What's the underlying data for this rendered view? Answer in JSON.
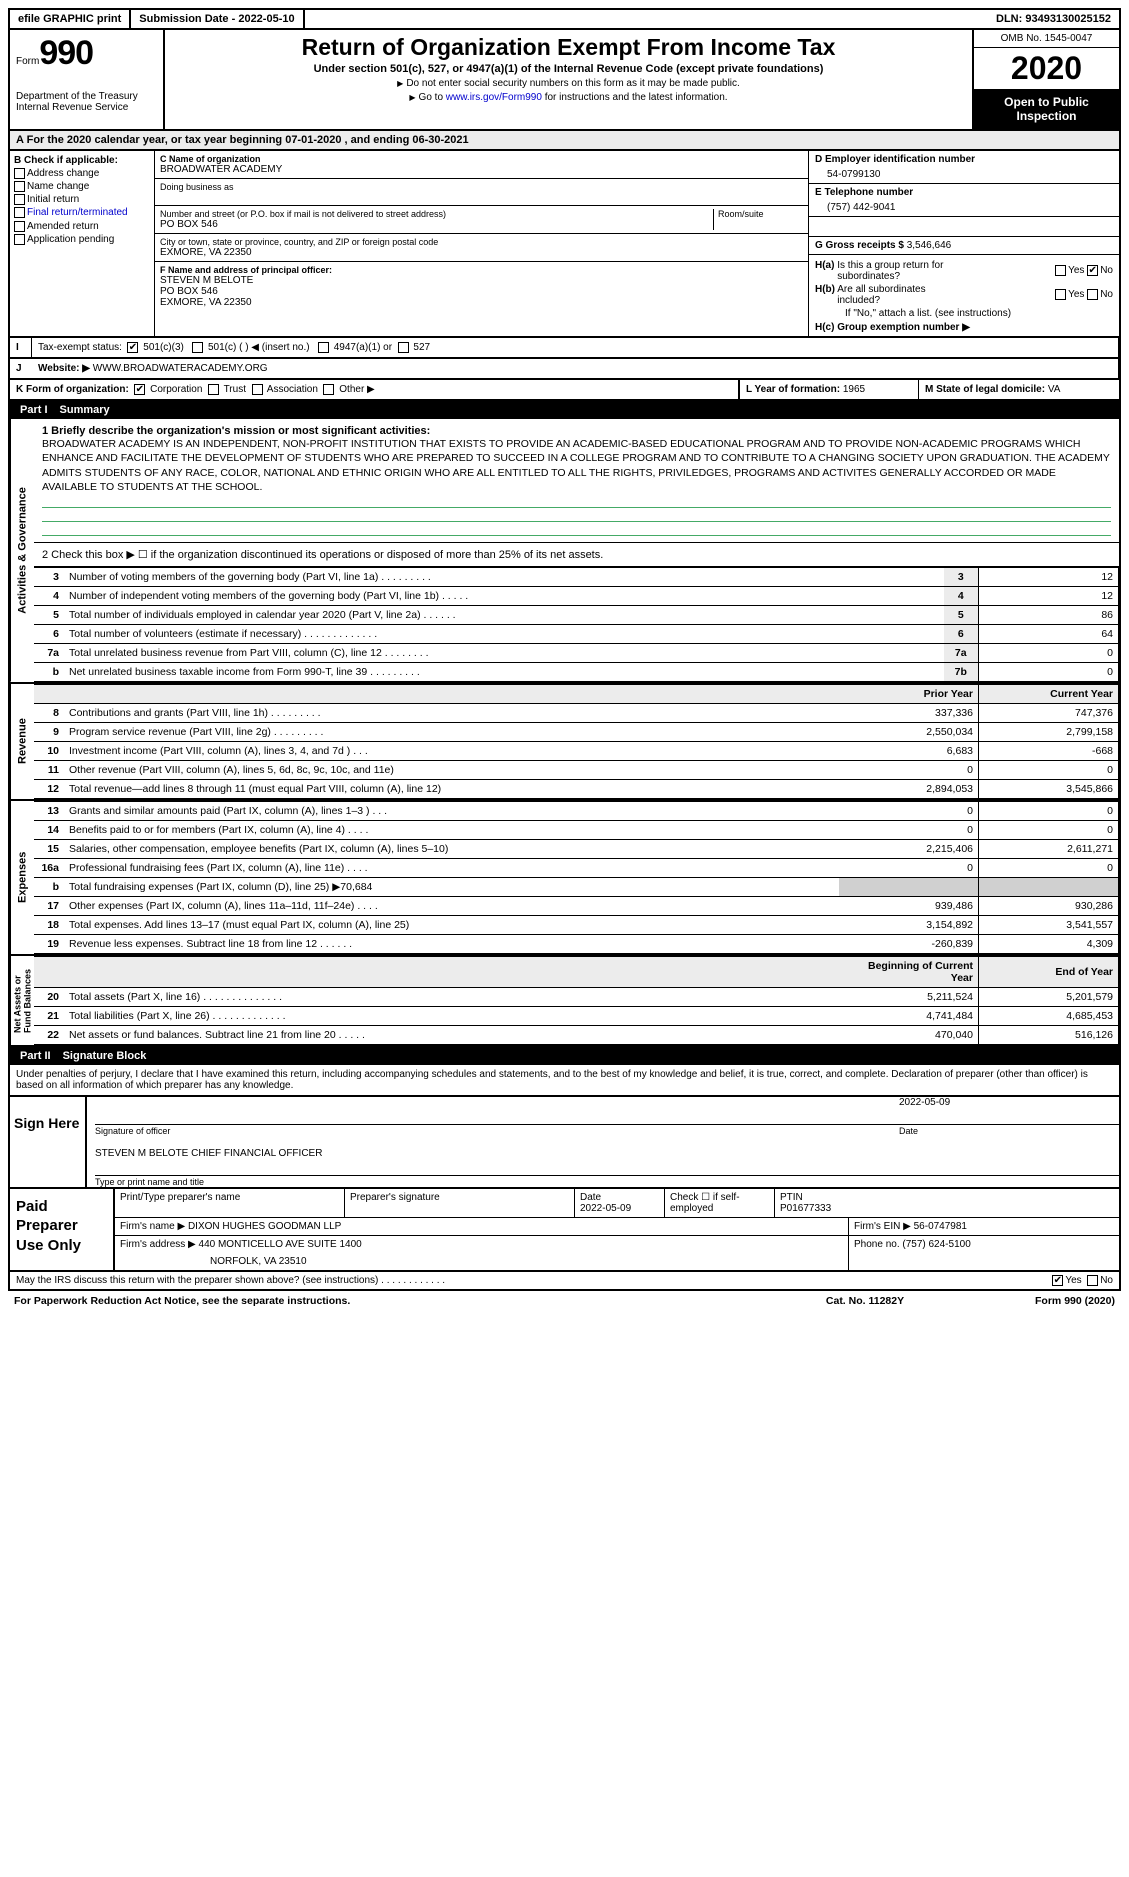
{
  "topbar": {
    "efile": "efile GRAPHIC print",
    "subdate_label": "Submission Date - ",
    "subdate": "2022-05-10",
    "dln_label": "DLN: ",
    "dln": "93493130025152"
  },
  "header": {
    "form_word": "Form",
    "form_no": "990",
    "dept": "Department of the Treasury\nInternal Revenue Service",
    "title": "Return of Organization Exempt From Income Tax",
    "subtitle": "Under section 501(c), 527, or 4947(a)(1) of the Internal Revenue Code (except private foundations)",
    "note1": "Do not enter social security numbers on this form as it may be made public.",
    "note2_pre": "Go to ",
    "note2_link": "www.irs.gov/Form990",
    "note2_post": " for instructions and the latest information.",
    "omb": "OMB No. 1545-0047",
    "year": "2020",
    "open": "Open to Public Inspection"
  },
  "period": {
    "text": "For the 2020 calendar year, or tax year beginning 07-01-2020   , and ending 06-30-2021"
  },
  "boxB": {
    "header": "B Check if applicable:",
    "items": [
      "Address change",
      "Name change",
      "Initial return",
      "Final return/terminated",
      "Amended return",
      "Application pending"
    ]
  },
  "boxC": {
    "name_label": "C Name of organization",
    "name": "BROADWATER ACADEMY",
    "dba_label": "Doing business as",
    "street_label": "Number and street (or P.O. box if mail is not delivered to street address)",
    "room_label": "Room/suite",
    "street": "PO BOX 546",
    "city_label": "City or town, state or province, country, and ZIP or foreign postal code",
    "city": "EXMORE, VA  22350"
  },
  "boxD": {
    "label": "D Employer identification number",
    "val": "54-0799130"
  },
  "boxE": {
    "label": "E Telephone number",
    "val": "(757) 442-9041"
  },
  "boxG": {
    "label": "G Gross receipts $ ",
    "val": "3,546,646"
  },
  "boxF": {
    "label": "F  Name and address of principal officer:",
    "name": "STEVEN M BELOTE",
    "line1": "PO BOX 546",
    "line2": "EXMORE, VA  22350"
  },
  "boxH": {
    "ha_label": "H(a)  Is this a group return for subordinates?",
    "hb_label": "H(b)  Are all subordinates included?",
    "hb_note": "If \"No,\" attach a list. (see instructions)",
    "hc_label": "H(c)  Group exemption number ▶",
    "yes": "Yes",
    "no": "No"
  },
  "boxI": {
    "label": "Tax-exempt status:",
    "opts": [
      "501(c)(3)",
      "501(c) (  ) ◀ (insert no.)",
      "4947(a)(1) or",
      "527"
    ]
  },
  "boxJ": {
    "label": "Website: ▶",
    "val": "WWW.BROADWATERACADEMY.ORG"
  },
  "boxK": {
    "label": "K Form of organization:",
    "opts": [
      "Corporation",
      "Trust",
      "Association",
      "Other ▶"
    ]
  },
  "boxL": {
    "label": "L Year of formation: ",
    "val": "1965"
  },
  "boxM": {
    "label": "M State of legal domicile: ",
    "val": "VA"
  },
  "part1": {
    "num": "Part I",
    "title": "Summary"
  },
  "part2": {
    "num": "Part II",
    "title": "Signature Block"
  },
  "vtabs": {
    "ag": "Activities & Governance",
    "rev": "Revenue",
    "exp": "Expenses",
    "net": "Net Assets or\nFund Balances"
  },
  "mission": {
    "label": "1   Briefly describe the organization's mission or most significant activities:",
    "text": "BROADWATER ACADEMY IS AN INDEPENDENT, NON-PROFIT INSTITUTION THAT EXISTS TO PROVIDE AN ACADEMIC-BASED EDUCATIONAL PROGRAM AND TO PROVIDE NON-ACADEMIC PROGRAMS WHICH ENHANCE AND FACILITATE THE DEVELOPMENT OF STUDENTS WHO ARE PREPARED TO SUCCEED IN A COLLEGE PROGRAM AND TO CONTRIBUTE TO A CHANGING SOCIETY UPON GRADUATION. THE ACADEMY ADMITS STUDENTS OF ANY RACE, COLOR, NATIONAL AND ETHNIC ORIGIN WHO ARE ALL ENTITLED TO ALL THE RIGHTS, PRIVILEDGES, PROGRAMS AND ACTIVITES GENERALLY ACCORDED OR MADE AVAILABLE TO STUDENTS AT THE SCHOOL."
  },
  "line2": "2    Check this box ▶ ☐  if the organization discontinued its operations or disposed of more than 25% of its net assets.",
  "gov_rows": [
    {
      "n": "3",
      "d": "Number of voting members of the governing body (Part VI, line 1a)   .    .    .    .    .    .    .    .    .",
      "i": "3",
      "v": "12"
    },
    {
      "n": "4",
      "d": "Number of independent voting members of the governing body (Part VI, line 1b)    .    .    .    .    .",
      "i": "4",
      "v": "12"
    },
    {
      "n": "5",
      "d": "Total number of individuals employed in calendar year 2020 (Part V, line 2a)   .    .    .    .    .    .",
      "i": "5",
      "v": "86"
    },
    {
      "n": "6",
      "d": "Total number of volunteers (estimate if necessary)   .    .    .    .    .    .    .    .    .    .    .    .    .",
      "i": "6",
      "v": "64"
    },
    {
      "n": "7a",
      "d": "Total unrelated business revenue from Part VIII, column (C), line 12   .    .    .    .    .    .    .    .",
      "i": "7a",
      "v": "0"
    },
    {
      "n": "b",
      "d": "Net unrelated business taxable income from Form 990-T, line 39   .    .    .    .    .    .    .    .    .",
      "i": "7b",
      "v": "0"
    }
  ],
  "rev_hdr": {
    "prior": "Prior Year",
    "curr": "Current Year"
  },
  "rev_rows": [
    {
      "n": "8",
      "d": "Contributions and grants (Part VIII, line 1h)   .    .    .    .    .    .    .    .    .",
      "p": "337,336",
      "c": "747,376"
    },
    {
      "n": "9",
      "d": "Program service revenue (Part VIII, line 2g)   .    .    .    .    .    .    .    .    .",
      "p": "2,550,034",
      "c": "2,799,158"
    },
    {
      "n": "10",
      "d": "Investment income (Part VIII, column (A), lines 3, 4, and 7d )   .    .    .",
      "p": "6,683",
      "c": "-668"
    },
    {
      "n": "11",
      "d": "Other revenue (Part VIII, column (A), lines 5, 6d, 8c, 9c, 10c, and 11e)",
      "p": "0",
      "c": "0"
    },
    {
      "n": "12",
      "d": "Total revenue—add lines 8 through 11 (must equal Part VIII, column (A), line 12)",
      "p": "2,894,053",
      "c": "3,545,866"
    }
  ],
  "exp_rows": [
    {
      "n": "13",
      "d": "Grants and similar amounts paid (Part IX, column (A), lines 1–3 )   .    .    .",
      "p": "0",
      "c": "0"
    },
    {
      "n": "14",
      "d": "Benefits paid to or for members (Part IX, column (A), line 4)   .    .    .    .",
      "p": "0",
      "c": "0"
    },
    {
      "n": "15",
      "d": "Salaries, other compensation, employee benefits (Part IX, column (A), lines 5–10)",
      "p": "2,215,406",
      "c": "2,611,271"
    },
    {
      "n": "16a",
      "d": "Professional fundraising fees (Part IX, column (A), line 11e)   .    .    .    .",
      "p": "0",
      "c": "0"
    },
    {
      "n": "b",
      "d": "Total fundraising expenses (Part IX, column (D), line 25) ▶70,684",
      "p": "",
      "c": "",
      "shade": true
    },
    {
      "n": "17",
      "d": "Other expenses (Part IX, column (A), lines 11a–11d, 11f–24e)   .    .    .    .",
      "p": "939,486",
      "c": "930,286"
    },
    {
      "n": "18",
      "d": "Total expenses. Add lines 13–17 (must equal Part IX, column (A), line 25)",
      "p": "3,154,892",
      "c": "3,541,557"
    },
    {
      "n": "19",
      "d": "Revenue less expenses. Subtract line 18 from line 12   .    .    .    .    .    .",
      "p": "-260,839",
      "c": "4,309"
    }
  ],
  "net_hdr": {
    "beg": "Beginning of Current Year",
    "end": "End of Year"
  },
  "net_rows": [
    {
      "n": "20",
      "d": "Total assets (Part X, line 16)   .    .    .    .    .    .    .    .    .    .    .    .    .    .",
      "p": "5,211,524",
      "c": "5,201,579"
    },
    {
      "n": "21",
      "d": "Total liabilities (Part X, line 26)   .    .    .    .    .    .    .    .    .    .    .    .    .",
      "p": "4,741,484",
      "c": "4,685,453"
    },
    {
      "n": "22",
      "d": "Net assets or fund balances. Subtract line 21 from line 20   .    .    .    .    .",
      "p": "470,040",
      "c": "516,126"
    }
  ],
  "penalties": "Under penalties of perjury, I declare that I have examined this return, including accompanying schedules and statements, and to the best of my knowledge and belief, it is true, correct, and complete. Declaration of preparer (other than officer) is based on all information of which preparer has any knowledge.",
  "sign": {
    "here": "Sign Here",
    "sig_label": "Signature of officer",
    "date_label": "Date",
    "date": "2022-05-09",
    "name_label": "Type or print name and title",
    "name": "STEVEN M BELOTE  CHIEF FINANCIAL OFFICER"
  },
  "prep": {
    "label": "Paid Preparer Use Only",
    "h1": "Print/Type preparer's name",
    "h2": "Preparer's signature",
    "h3": "Date",
    "date": "2022-05-09",
    "h4": "Check ☐ if self-employed",
    "h5": "PTIN",
    "ptin": "P01677333",
    "firm_label": "Firm's name    ▶ ",
    "firm": "DIXON HUGHES GOODMAN LLP",
    "ein_label": "Firm's EIN ▶ ",
    "ein": "56-0747981",
    "addr_label": "Firm's address ▶ ",
    "addr1": "440 MONTICELLO AVE SUITE 1400",
    "addr2": "NORFOLK, VA  23510",
    "phone_label": "Phone no. ",
    "phone": "(757) 624-5100"
  },
  "discuss": {
    "text": "May the IRS discuss this return with the preparer shown above? (see instructions)   .    .    .    .    .    .    .    .    .    .    .    .",
    "yes": "Yes",
    "no": "No"
  },
  "footer": {
    "pra": "For Paperwork Reduction Act Notice, see the separate instructions.",
    "cat": "Cat. No. 11282Y",
    "form": "Form 990 (2020)"
  }
}
